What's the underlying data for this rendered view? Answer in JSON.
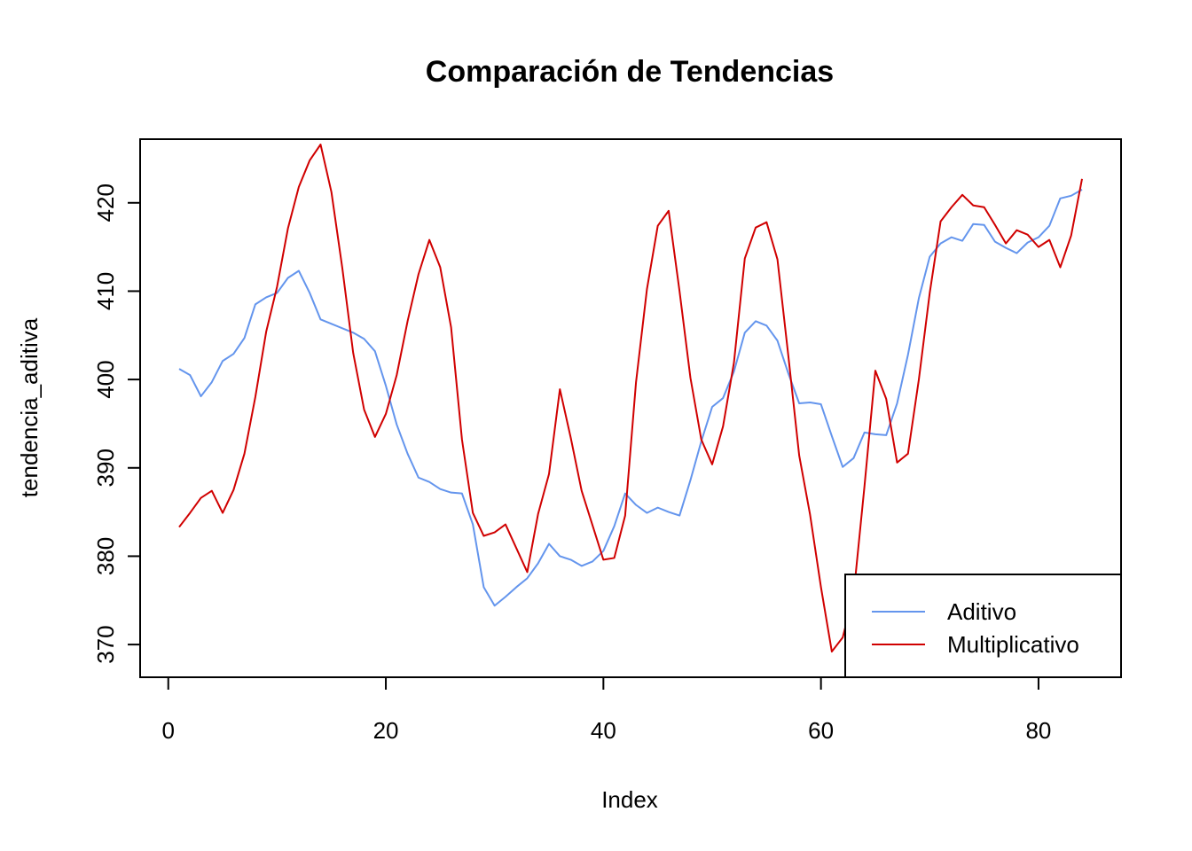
{
  "chart_data": {
    "type": "line",
    "title": "Comparación de Tendencias",
    "xlabel": "Index",
    "ylabel": "tendencia_aditiva",
    "xlim": [
      1,
      84
    ],
    "ylim": [
      367,
      426.5
    ],
    "x_ticks": [
      0,
      20,
      40,
      60,
      80
    ],
    "y_ticks": [
      370,
      380,
      390,
      400,
      410,
      420
    ],
    "grid": false,
    "legend": "bottom-right",
    "series": [
      {
        "name": "Aditivo",
        "color": "#6495ED",
        "values": [
          401.2,
          400.5,
          398.1,
          399.7,
          402.1,
          402.9,
          404.7,
          408.5,
          409.3,
          409.8,
          411.5,
          412.3,
          409.8,
          406.8,
          406.3,
          405.8,
          405.3,
          404.6,
          403.2,
          399.3,
          394.9,
          391.6,
          388.9,
          388.4,
          387.6,
          387.2,
          387.1,
          383.6,
          376.5,
          374.4,
          375.4,
          376.5,
          377.5,
          379.2,
          381.4,
          380.0,
          379.6,
          378.9,
          379.4,
          380.6,
          383.4,
          387.1,
          385.8,
          384.9,
          385.5,
          385.0,
          384.6,
          388.6,
          393.0,
          396.9,
          397.9,
          400.9,
          405.3,
          406.6,
          406.1,
          404.4,
          400.7,
          397.3,
          397.4,
          397.2,
          393.6,
          390.1,
          391.1,
          394.0,
          393.8,
          393.7,
          397.3,
          402.8,
          409.2,
          413.9,
          415.4,
          416.1,
          415.7,
          417.6,
          417.5,
          415.6,
          414.9,
          414.3,
          415.5,
          416.1,
          417.4,
          420.5,
          420.8,
          421.5
        ]
      },
      {
        "name": "Multiplicativo",
        "color": "#D00000",
        "values": [
          383.3,
          384.9,
          386.6,
          387.4,
          384.9,
          387.5,
          391.6,
          398.0,
          405.4,
          410.5,
          417.1,
          421.8,
          424.8,
          426.6,
          421.2,
          412.6,
          403.0,
          396.6,
          393.5,
          396.1,
          400.5,
          406.6,
          411.9,
          415.8,
          412.7,
          405.9,
          393.2,
          384.9,
          382.3,
          382.7,
          383.6,
          380.9,
          378.2,
          384.8,
          389.3,
          398.9,
          393.4,
          387.4,
          383.5,
          379.6,
          379.8,
          384.6,
          399.7,
          410.2,
          417.4,
          419.1,
          410.0,
          400.2,
          393.2,
          390.4,
          394.7,
          401.9,
          413.7,
          417.2,
          417.8,
          413.6,
          402.7,
          391.4,
          384.7,
          376.5,
          369.2,
          370.8,
          375.6,
          387.9,
          401.0,
          397.8,
          390.6,
          391.6,
          400.0,
          409.8,
          417.9,
          419.5,
          420.9,
          419.7,
          419.5,
          417.5,
          415.4,
          416.9,
          416.4,
          415.0,
          415.8,
          412.7,
          416.3,
          422.7
        ]
      }
    ]
  }
}
